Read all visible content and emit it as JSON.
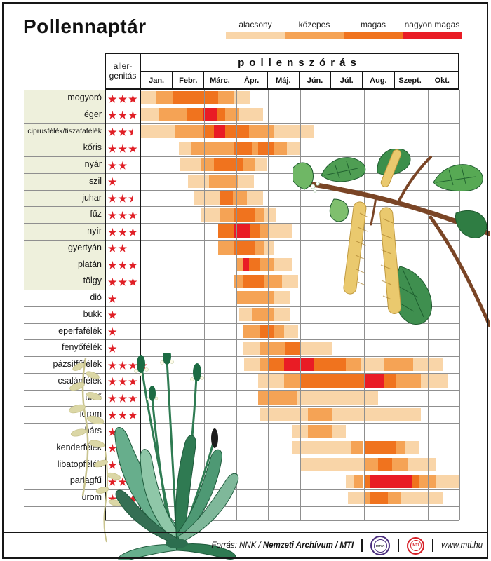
{
  "title": "Pollennaptár",
  "chart_data": {
    "type": "heatmap",
    "title": "Pollennaptár",
    "main_header": "pollenszórás",
    "allergenicity_header_lines": [
      "aller-",
      "genitás"
    ],
    "months": [
      "Jan.",
      "Febr.",
      "Márc.",
      "Ápr.",
      "Máj.",
      "Jún.",
      "Júl.",
      "Aug.",
      "Szept.",
      "Okt."
    ],
    "x_range_months": [
      0,
      10
    ],
    "levels": [
      {
        "id": "low",
        "label": "alacsony",
        "color": "#f9d5a8"
      },
      {
        "id": "med",
        "label": "közepes",
        "color": "#f5a355"
      },
      {
        "id": "high",
        "label": "magas",
        "color": "#f0731e"
      },
      {
        "id": "vhigh",
        "label": "nagyon magas",
        "color": "#e91c25"
      }
    ],
    "star_color": "#e01f26",
    "row_label_shade_color": "#eef0dc",
    "rows": [
      {
        "name": "mogyoró",
        "stars": 3,
        "shaded": true,
        "segments": [
          [
            0,
            0.5,
            "low"
          ],
          [
            0.5,
            1,
            "med"
          ],
          [
            1,
            2.45,
            "high"
          ],
          [
            2.45,
            2.95,
            "med"
          ],
          [
            2.95,
            3.45,
            "low"
          ]
        ]
      },
      {
        "name": "éger",
        "stars": 3,
        "shaded": true,
        "segments": [
          [
            0,
            0.6,
            "low"
          ],
          [
            0.6,
            1.45,
            "med"
          ],
          [
            1.45,
            1.95,
            "high"
          ],
          [
            1.95,
            2.4,
            "vhigh"
          ],
          [
            2.4,
            2.65,
            "high"
          ],
          [
            2.65,
            3.1,
            "med"
          ],
          [
            3.1,
            3.85,
            "low"
          ]
        ]
      },
      {
        "name": "ciprusfélék/tiszafafélék",
        "stars": 2.5,
        "shaded": true,
        "segments": [
          [
            0,
            1.1,
            "low"
          ],
          [
            1.1,
            1.95,
            "med"
          ],
          [
            1.95,
            2.3,
            "high"
          ],
          [
            2.3,
            2.65,
            "vhigh"
          ],
          [
            2.65,
            3.4,
            "high"
          ],
          [
            3.4,
            4.2,
            "med"
          ],
          [
            4.2,
            5.45,
            "low"
          ]
        ]
      },
      {
        "name": "kőris",
        "stars": 3,
        "shaded": true,
        "segments": [
          [
            1.2,
            1.6,
            "low"
          ],
          [
            1.6,
            2.95,
            "med"
          ],
          [
            2.95,
            3.5,
            "high"
          ],
          [
            3.5,
            3.7,
            "med"
          ],
          [
            3.7,
            4.2,
            "high"
          ],
          [
            4.2,
            4.6,
            "med"
          ],
          [
            4.6,
            5,
            "low"
          ]
        ]
      },
      {
        "name": "nyár",
        "stars": 2,
        "shaded": true,
        "segments": [
          [
            1.25,
            1.9,
            "low"
          ],
          [
            1.9,
            2.3,
            "med"
          ],
          [
            2.3,
            3.2,
            "high"
          ],
          [
            3.2,
            3.6,
            "med"
          ],
          [
            3.6,
            3.95,
            "low"
          ]
        ]
      },
      {
        "name": "szil",
        "stars": 1,
        "shaded": true,
        "segments": [
          [
            1.5,
            2.15,
            "low"
          ],
          [
            2.15,
            3.05,
            "med"
          ],
          [
            3.05,
            3.55,
            "low"
          ]
        ]
      },
      {
        "name": "juhar",
        "stars": 2.5,
        "shaded": true,
        "segments": [
          [
            1.7,
            2.5,
            "low"
          ],
          [
            2.5,
            2.9,
            "high"
          ],
          [
            2.9,
            3.35,
            "med"
          ],
          [
            3.35,
            3.85,
            "low"
          ]
        ]
      },
      {
        "name": "fűz",
        "stars": 3,
        "shaded": true,
        "segments": [
          [
            1.9,
            2.5,
            "low"
          ],
          [
            2.5,
            2.95,
            "med"
          ],
          [
            2.95,
            3.6,
            "high"
          ],
          [
            3.6,
            3.9,
            "med"
          ],
          [
            3.9,
            4.25,
            "low"
          ]
        ]
      },
      {
        "name": "nyír",
        "stars": 3,
        "shaded": true,
        "segments": [
          [
            2.45,
            2.95,
            "high"
          ],
          [
            2.95,
            3.45,
            "vhigh"
          ],
          [
            3.45,
            3.75,
            "high"
          ],
          [
            3.75,
            4.05,
            "med"
          ],
          [
            4.05,
            4.75,
            "low"
          ]
        ]
      },
      {
        "name": "gyertyán",
        "stars": 2,
        "shaded": true,
        "segments": [
          [
            2.45,
            2.95,
            "med"
          ],
          [
            2.95,
            3.6,
            "high"
          ],
          [
            3.6,
            3.9,
            "med"
          ],
          [
            3.9,
            4.2,
            "low"
          ]
        ]
      },
      {
        "name": "platán",
        "stars": 3,
        "shaded": true,
        "segments": [
          [
            3,
            3.2,
            "med"
          ],
          [
            3.2,
            3.4,
            "vhigh"
          ],
          [
            3.4,
            3.75,
            "high"
          ],
          [
            3.75,
            4.2,
            "med"
          ],
          [
            4.2,
            4.75,
            "low"
          ]
        ]
      },
      {
        "name": "tölgy",
        "stars": 3,
        "shaded": true,
        "segments": [
          [
            2.95,
            3.2,
            "med"
          ],
          [
            3.2,
            3.9,
            "high"
          ],
          [
            3.9,
            4.45,
            "med"
          ],
          [
            4.45,
            4.95,
            "low"
          ]
        ]
      },
      {
        "name": "dió",
        "stars": 1,
        "shaded": false,
        "segments": [
          [
            3,
            4.2,
            "med"
          ],
          [
            4.2,
            4.7,
            "low"
          ]
        ]
      },
      {
        "name": "bükk",
        "stars": 1,
        "shaded": false,
        "segments": [
          [
            3.1,
            3.5,
            "low"
          ],
          [
            3.5,
            4.2,
            "med"
          ],
          [
            4.2,
            4.7,
            "low"
          ]
        ]
      },
      {
        "name": "eperfafélék",
        "stars": 1,
        "shaded": false,
        "segments": [
          [
            3.2,
            3.75,
            "med"
          ],
          [
            3.75,
            4.2,
            "high"
          ],
          [
            4.2,
            4.5,
            "med"
          ],
          [
            4.5,
            4.95,
            "low"
          ]
        ]
      },
      {
        "name": "fenyőfélék",
        "stars": 1,
        "shaded": false,
        "segments": [
          [
            3.2,
            3.75,
            "low"
          ],
          [
            3.75,
            4.55,
            "med"
          ],
          [
            4.55,
            5,
            "high"
          ],
          [
            5,
            6,
            "low"
          ]
        ]
      },
      {
        "name": "pázsitfűfélék",
        "stars": 4,
        "shaded": false,
        "segments": [
          [
            3.25,
            3.75,
            "low"
          ],
          [
            3.75,
            4,
            "med"
          ],
          [
            4,
            4.5,
            "high"
          ],
          [
            4.5,
            5.45,
            "vhigh"
          ],
          [
            5.45,
            6.45,
            "high"
          ],
          [
            6.45,
            6.9,
            "med"
          ],
          [
            6.9,
            7.65,
            "low"
          ],
          [
            7.65,
            8.55,
            "med"
          ],
          [
            8.55,
            9.5,
            "low"
          ]
        ]
      },
      {
        "name": "csalánfélék",
        "stars": 3,
        "shaded": false,
        "segments": [
          [
            3.7,
            4.5,
            "low"
          ],
          [
            4.5,
            5,
            "med"
          ],
          [
            5,
            7,
            "high"
          ],
          [
            7,
            7.65,
            "vhigh"
          ],
          [
            7.65,
            8,
            "high"
          ],
          [
            8,
            8.8,
            "med"
          ],
          [
            8.8,
            9.65,
            "low"
          ]
        ]
      },
      {
        "name": "útifű",
        "stars": 3,
        "shaded": false,
        "segments": [
          [
            3.7,
            4.9,
            "med"
          ],
          [
            4.9,
            7.45,
            "low"
          ]
        ]
      },
      {
        "name": "lórom",
        "stars": 3,
        "shaded": false,
        "segments": [
          [
            3.75,
            5.25,
            "low"
          ],
          [
            5.25,
            6,
            "med"
          ],
          [
            6,
            8.8,
            "low"
          ]
        ]
      },
      {
        "name": "hárs",
        "stars": 1,
        "shaded": false,
        "segments": [
          [
            4.75,
            5.25,
            "low"
          ],
          [
            5.25,
            6,
            "med"
          ],
          [
            6,
            6.45,
            "low"
          ]
        ]
      },
      {
        "name": "kenderfélék",
        "stars": 1,
        "shaded": false,
        "segments": [
          [
            4.75,
            6.6,
            "low"
          ],
          [
            6.6,
            7,
            "med"
          ],
          [
            7,
            8,
            "high"
          ],
          [
            8,
            8.3,
            "med"
          ],
          [
            8.3,
            8.75,
            "low"
          ]
        ]
      },
      {
        "name": "libatopfélék",
        "stars": 3,
        "shaded": false,
        "segments": [
          [
            5,
            7,
            "low"
          ],
          [
            7,
            7.45,
            "med"
          ],
          [
            7.45,
            7.9,
            "high"
          ],
          [
            7.9,
            8.4,
            "med"
          ],
          [
            8.4,
            9.25,
            "low"
          ]
        ]
      },
      {
        "name": "parlagfű",
        "stars": 4,
        "shaded": false,
        "segments": [
          [
            6.45,
            6.7,
            "low"
          ],
          [
            6.7,
            7,
            "med"
          ],
          [
            7,
            7.2,
            "high"
          ],
          [
            7.2,
            8.5,
            "vhigh"
          ],
          [
            8.5,
            8.75,
            "high"
          ],
          [
            8.75,
            9.25,
            "med"
          ],
          [
            9.25,
            10,
            "low"
          ]
        ]
      },
      {
        "name": "üröm",
        "stars": 4,
        "shaded": false,
        "segments": [
          [
            6.5,
            7,
            "low"
          ],
          [
            7,
            7.2,
            "med"
          ],
          [
            7.2,
            7.75,
            "high"
          ],
          [
            7.75,
            8.15,
            "med"
          ],
          [
            8.15,
            9.5,
            "low"
          ]
        ]
      }
    ]
  },
  "footer": {
    "source_normal": "Forrás: NNK / ",
    "source_bold": "Nemzeti Archívum / MTI",
    "logo1": "MTVA",
    "logo2": "MTI",
    "website": "www.mti.hu"
  }
}
